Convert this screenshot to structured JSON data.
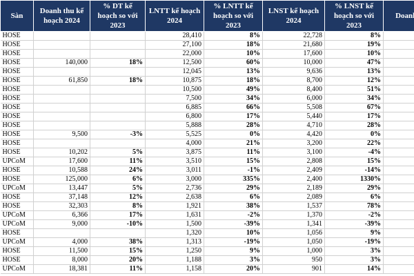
{
  "table": {
    "header": [
      "Sàn",
      "Doanh thu kế hoạch 2024",
      "% DT kế hoạch so với 2023",
      "LNTT kế hoạch 2024",
      "% LNTT kế hoạch so với 2023",
      "LNST kế hoạch 2024",
      "% LNST kế hoạch so với 2023",
      "Doanh thu"
    ],
    "rows": [
      [
        "HOSE",
        null,
        null,
        "28,410",
        "8%",
        "22,728",
        "8%"
      ],
      [
        "HOSE",
        null,
        null,
        "27,100",
        "18%",
        "21,680",
        "19%"
      ],
      [
        "HOSE",
        null,
        null,
        "22,000",
        "10%",
        "17,600",
        "10%"
      ],
      [
        "HOSE",
        "140,000",
        "18%",
        "12,500",
        "60%",
        "10,000",
        "47%"
      ],
      [
        "HOSE",
        null,
        null,
        "12,045",
        "13%",
        "9,636",
        "13%"
      ],
      [
        "HOSE",
        "61,850",
        "18%",
        "10,875",
        "18%",
        "8,700",
        "12%"
      ],
      [
        "HOSE",
        null,
        null,
        "10,500",
        "49%",
        "8,400",
        "51%"
      ],
      [
        "HOSE",
        null,
        null,
        "7,500",
        "34%",
        "6,000",
        "34%"
      ],
      [
        "HOSE",
        null,
        null,
        "6,885",
        "66%",
        "5,508",
        "67%"
      ],
      [
        "HOSE",
        null,
        null,
        "6,800",
        "17%",
        "5,440",
        "17%"
      ],
      [
        "HOSE",
        null,
        null,
        "5,888",
        "28%",
        "4,710",
        "28%"
      ],
      [
        "HOSE",
        "9,500",
        "-3%",
        "5,525",
        "0%",
        "4,420",
        "0%"
      ],
      [
        "HOSE",
        null,
        null,
        "4,000",
        "21%",
        "3,200",
        "22%"
      ],
      [
        "HOSE",
        "10,202",
        "5%",
        "3,875",
        "11%",
        "3,100",
        "-4%"
      ],
      [
        "UPCoM",
        "17,600",
        "11%",
        "3,510",
        "15%",
        "2,808",
        "15%"
      ],
      [
        "HOSE",
        "10,588",
        "24%",
        "3,011",
        "-1%",
        "2,409",
        "-14%"
      ],
      [
        "HOSE",
        "125,000",
        "6%",
        "3,000",
        "335%",
        "2,400",
        "1330%"
      ],
      [
        "UPCoM",
        "13,447",
        "5%",
        "2,736",
        "29%",
        "2,189",
        "29%"
      ],
      [
        "HOSE",
        "37,148",
        "12%",
        "2,638",
        "6%",
        "2,089",
        "6%"
      ],
      [
        "HOSE",
        "32,303",
        "8%",
        "1,921",
        "38%",
        "1,537",
        "78%"
      ],
      [
        "UPCoM",
        "6,366",
        "17%",
        "1,631",
        "-2%",
        "1,370",
        "-2%"
      ],
      [
        "UPCoM",
        "9,000",
        "-10%",
        "1,500",
        "-39%",
        "1,341",
        "-39%"
      ],
      [
        "HOSE",
        null,
        null,
        "1,320",
        "10%",
        "1,056",
        "9%"
      ],
      [
        "UPCoM",
        "4,000",
        "38%",
        "1,313",
        "-19%",
        "1,050",
        "-19%"
      ],
      [
        "HOSE",
        "11,500",
        "15%",
        "1,250",
        "9%",
        "1,000",
        "3%"
      ],
      [
        "HOSE",
        "8,000",
        "20%",
        "1,188",
        "3%",
        "950",
        "3%"
      ],
      [
        "UPCoM",
        "18,381",
        "11%",
        "1,158",
        "20%",
        "901",
        "14%"
      ]
    ]
  }
}
